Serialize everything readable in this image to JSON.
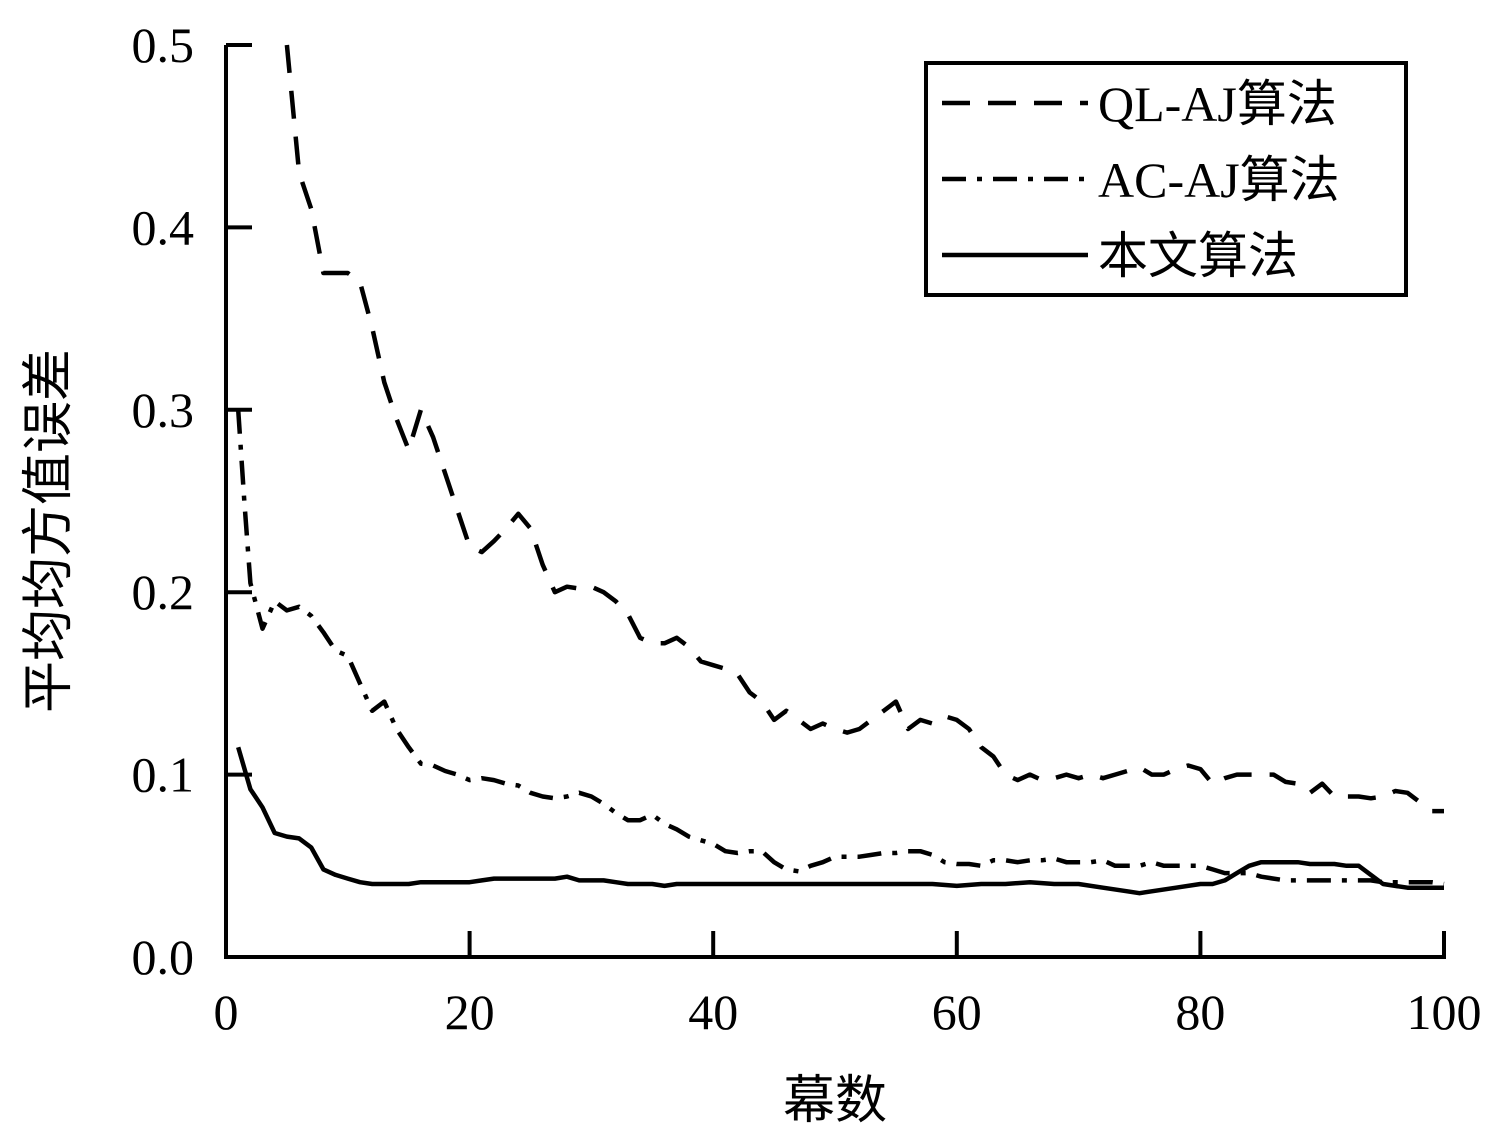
{
  "chart_data": {
    "type": "line",
    "title": "",
    "xlabel": "幕数",
    "ylabel": "平均均方值误差",
    "xlim": [
      0,
      100
    ],
    "ylim": [
      0,
      0.5
    ],
    "xticks": [
      "0",
      "20",
      "40",
      "60",
      "80",
      "100"
    ],
    "yticks": [
      "0.0",
      "0.1",
      "0.2",
      "0.3",
      "0.4",
      "0.5"
    ],
    "grid": false,
    "legend_position": "top-right",
    "series": [
      {
        "name": "QL-AJ算法",
        "style": "dashed",
        "x": [
          5,
          6,
          7,
          8,
          9,
          10,
          11,
          12,
          13,
          14,
          15,
          16,
          17,
          18,
          19,
          20,
          21,
          22,
          23,
          24,
          25,
          26,
          27,
          28,
          29,
          30,
          31,
          32,
          33,
          34,
          35,
          36,
          37,
          38,
          39,
          40,
          41,
          42,
          43,
          44,
          45,
          46,
          47,
          48,
          49,
          50,
          51,
          52,
          53,
          54,
          55,
          56,
          57,
          58,
          59,
          60,
          61,
          62,
          63,
          64,
          65,
          66,
          67,
          68,
          69,
          70,
          71,
          72,
          73,
          74,
          75,
          76,
          77,
          78,
          79,
          80,
          81,
          82,
          83,
          84,
          85,
          86,
          87,
          88,
          89,
          90,
          91,
          92,
          93,
          94,
          95,
          96,
          97,
          98,
          99,
          100
        ],
        "y": [
          0.5,
          0.43,
          0.41,
          0.375,
          0.375,
          0.375,
          0.37,
          0.345,
          0.315,
          0.295,
          0.278,
          0.3,
          0.285,
          0.265,
          0.245,
          0.225,
          0.222,
          0.228,
          0.235,
          0.243,
          0.235,
          0.215,
          0.2,
          0.203,
          0.202,
          0.203,
          0.2,
          0.195,
          0.188,
          0.175,
          0.172,
          0.172,
          0.175,
          0.17,
          0.162,
          0.16,
          0.158,
          0.155,
          0.145,
          0.14,
          0.13,
          0.135,
          0.13,
          0.125,
          0.128,
          0.125,
          0.123,
          0.125,
          0.13,
          0.135,
          0.14,
          0.125,
          0.13,
          0.128,
          0.132,
          0.13,
          0.125,
          0.115,
          0.11,
          0.1,
          0.097,
          0.1,
          0.097,
          0.098,
          0.1,
          0.098,
          0.1,
          0.098,
          0.1,
          0.102,
          0.104,
          0.1,
          0.1,
          0.103,
          0.105,
          0.103,
          0.095,
          0.098,
          0.1,
          0.1,
          0.1,
          0.1,
          0.096,
          0.095,
          0.09,
          0.095,
          0.088,
          0.088,
          0.088,
          0.087,
          0.088,
          0.091,
          0.09,
          0.085,
          0.08,
          0.08
        ]
      },
      {
        "name": "AC-AJ算法",
        "style": "dashdot",
        "x": [
          1,
          1.5,
          2,
          3,
          4,
          5,
          6,
          7,
          8,
          9,
          10,
          11,
          12,
          13,
          14,
          15,
          16,
          17,
          18,
          19,
          20,
          21,
          22,
          23,
          24,
          25,
          26,
          27,
          28,
          29,
          30,
          31,
          32,
          33,
          34,
          35,
          36,
          37,
          38,
          39,
          40,
          41,
          42,
          43,
          44,
          45,
          46,
          47,
          48,
          49,
          50,
          51,
          52,
          53,
          54,
          55,
          56,
          57,
          58,
          59,
          60,
          61,
          62,
          63,
          64,
          65,
          66,
          67,
          68,
          69,
          70,
          71,
          72,
          73,
          74,
          75,
          76,
          77,
          78,
          79,
          80,
          81,
          82,
          83,
          84,
          85,
          86,
          87,
          88,
          89,
          90,
          91,
          92,
          93,
          94,
          95,
          96,
          97,
          98,
          99,
          100
        ],
        "y": [
          0.3,
          0.25,
          0.205,
          0.18,
          0.195,
          0.19,
          0.192,
          0.187,
          0.178,
          0.168,
          0.165,
          0.15,
          0.135,
          0.14,
          0.125,
          0.115,
          0.106,
          0.105,
          0.102,
          0.1,
          0.097,
          0.098,
          0.097,
          0.095,
          0.094,
          0.09,
          0.088,
          0.087,
          0.088,
          0.09,
          0.088,
          0.084,
          0.079,
          0.075,
          0.075,
          0.078,
          0.073,
          0.07,
          0.066,
          0.064,
          0.062,
          0.058,
          0.057,
          0.058,
          0.058,
          0.052,
          0.048,
          0.047,
          0.05,
          0.052,
          0.055,
          0.055,
          0.055,
          0.056,
          0.057,
          0.057,
          0.058,
          0.058,
          0.056,
          0.052,
          0.051,
          0.051,
          0.05,
          0.053,
          0.053,
          0.052,
          0.053,
          0.053,
          0.054,
          0.052,
          0.052,
          0.052,
          0.053,
          0.05,
          0.05,
          0.05,
          0.052,
          0.05,
          0.05,
          0.05,
          0.05,
          0.048,
          0.046,
          0.046,
          0.046,
          0.044,
          0.043,
          0.042,
          0.042,
          0.042,
          0.042,
          0.042,
          0.042,
          0.042,
          0.042,
          0.041,
          0.041,
          0.041,
          0.041,
          0.041,
          0.04
        ]
      },
      {
        "name": "本文算法",
        "style": "solid",
        "x": [
          1,
          2,
          3,
          4,
          5,
          6,
          7,
          8,
          9,
          10,
          11,
          12,
          13,
          14,
          15,
          16,
          17,
          18,
          19,
          20,
          21,
          22,
          23,
          24,
          25,
          26,
          27,
          28,
          29,
          30,
          31,
          32,
          33,
          34,
          35,
          36,
          37,
          38,
          39,
          40,
          42,
          44,
          46,
          47,
          48,
          50,
          52,
          54,
          56,
          58,
          60,
          62,
          64,
          66,
          68,
          70,
          72,
          74,
          75,
          76,
          78,
          80,
          81,
          82,
          83,
          84,
          85,
          86,
          87,
          88,
          89,
          90,
          91,
          92,
          93,
          94,
          95,
          96,
          97,
          98,
          99,
          100
        ],
        "y": [
          0.115,
          0.092,
          0.082,
          0.068,
          0.066,
          0.065,
          0.06,
          0.048,
          0.045,
          0.043,
          0.041,
          0.04,
          0.04,
          0.04,
          0.04,
          0.041,
          0.041,
          0.041,
          0.041,
          0.041,
          0.042,
          0.043,
          0.043,
          0.043,
          0.043,
          0.043,
          0.043,
          0.044,
          0.042,
          0.042,
          0.042,
          0.041,
          0.04,
          0.04,
          0.04,
          0.039,
          0.04,
          0.04,
          0.04,
          0.04,
          0.04,
          0.04,
          0.04,
          0.04,
          0.04,
          0.04,
          0.04,
          0.04,
          0.04,
          0.04,
          0.039,
          0.04,
          0.04,
          0.041,
          0.04,
          0.04,
          0.038,
          0.036,
          0.035,
          0.036,
          0.038,
          0.04,
          0.04,
          0.042,
          0.046,
          0.05,
          0.052,
          0.052,
          0.052,
          0.052,
          0.051,
          0.051,
          0.051,
          0.05,
          0.05,
          0.045,
          0.04,
          0.039,
          0.038,
          0.038,
          0.038,
          0.038
        ]
      }
    ]
  }
}
